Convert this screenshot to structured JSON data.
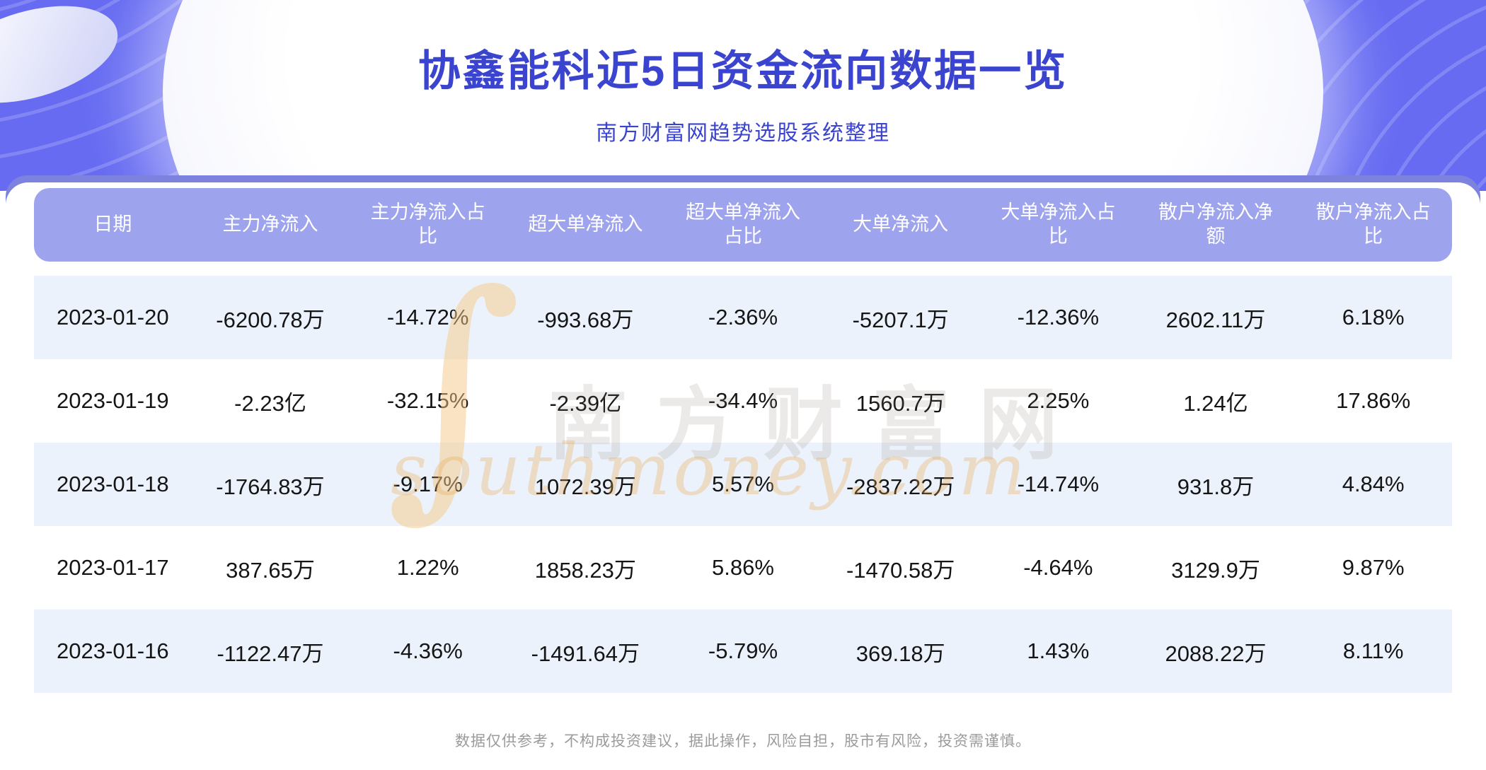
{
  "page": {
    "title": "协鑫能科近5日资金流向数据一览",
    "subtitle": "南方财富网趋势选股系统整理",
    "disclaimer": "数据仅供参考，不构成投资建议，据此操作，风险自担，股市有风险，投资需谨慎。"
  },
  "watermark": {
    "swoosh": "∫",
    "brand_cn": "南方财富网",
    "brand_en": "southmoney.com"
  },
  "colors": {
    "hero_bg": "#666bf2",
    "band": "#7d82de",
    "header_bg": "#9ea3ed",
    "row_alt": "#ecf2fb",
    "title_text": "#3b44ce",
    "footer_text": "#9b9b9b"
  },
  "chart_data": {
    "type": "table",
    "title": "协鑫能科近5日资金流向数据一览",
    "columns": [
      "日期",
      "主力净流入",
      "主力净流入占比",
      "超大单净流入",
      "超大单净流入占比",
      "大单净流入",
      "大单净流入占比",
      "散户净流入净额",
      "散户净流入占比"
    ],
    "columns_display": [
      "日期",
      "主力净流入",
      "主力净流入占\n比",
      "超大单净流入",
      "超大单净流入\n占比",
      "大单净流入",
      "大单净流入占\n比",
      "散户净流入净\n额",
      "散户净流入占\n比"
    ],
    "rows": [
      [
        "2023-01-20",
        "-6200.78万",
        "-14.72%",
        "-993.68万",
        "-2.36%",
        "-5207.1万",
        "-12.36%",
        "2602.11万",
        "6.18%"
      ],
      [
        "2023-01-19",
        "-2.23亿",
        "-32.15%",
        "-2.39亿",
        "-34.4%",
        "1560.7万",
        "2.25%",
        "1.24亿",
        "17.86%"
      ],
      [
        "2023-01-18",
        "-1764.83万",
        "-9.17%",
        "1072.39万",
        "5.57%",
        "-2837.22万",
        "-14.74%",
        "931.8万",
        "4.84%"
      ],
      [
        "2023-01-17",
        "387.65万",
        "1.22%",
        "1858.23万",
        "5.86%",
        "-1470.58万",
        "-4.64%",
        "3129.9万",
        "9.87%"
      ],
      [
        "2023-01-16",
        "-1122.47万",
        "-4.36%",
        "-1491.64万",
        "-5.79%",
        "369.18万",
        "1.43%",
        "2088.22万",
        "8.11%"
      ]
    ]
  }
}
